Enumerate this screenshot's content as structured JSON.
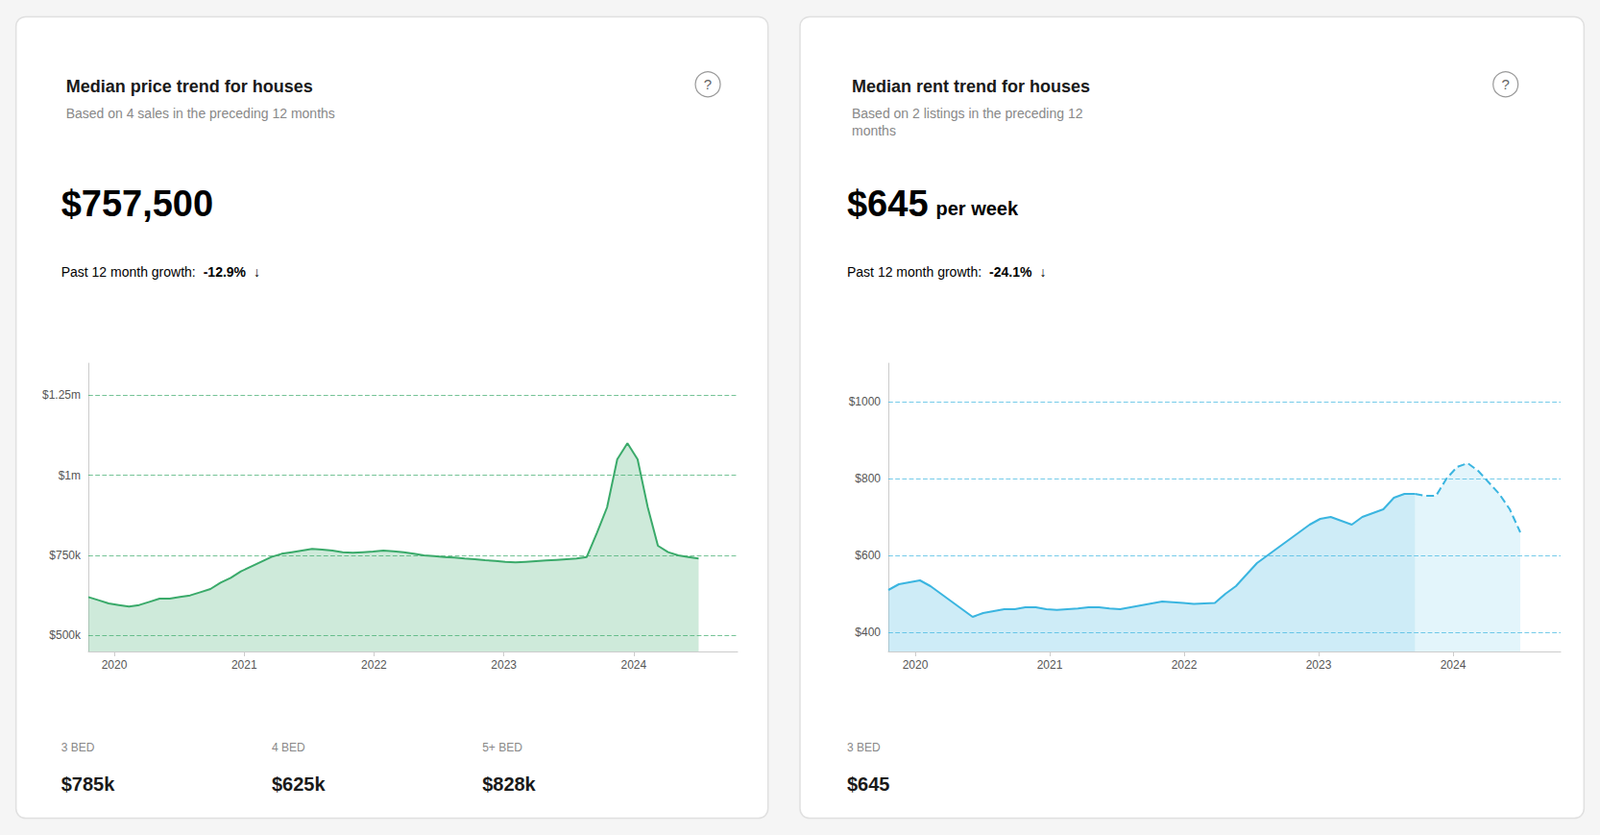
{
  "chart_data": [
    {
      "type": "area",
      "title": "Median price trend for houses",
      "subtitle": "Based on 4 sales in the preceding 12 months",
      "annotations": [
        [
          "?"
        ],
        [
          "$757,500"
        ],
        [
          "Past 12 month growth:",
          "-12.9%",
          "↓"
        ],
        [
          "3 BED",
          "4 BED",
          "5+ BED"
        ],
        [
          "$785k",
          "$625k",
          "$828k"
        ]
      ],
      "x": [
        2019.8,
        2019.878333,
        2019.956667,
        2020.035,
        2020.113333,
        2020.191667,
        2020.27,
        2020.348333,
        2020.426667,
        2020.505,
        2020.583333,
        2020.661667,
        2020.74,
        2020.818333,
        2020.896667,
        2020.975,
        2021.053333,
        2021.131667,
        2021.21,
        2021.288333,
        2021.366667,
        2021.445,
        2021.523333,
        2021.601667,
        2021.68,
        2021.758333,
        2021.836667,
        2021.915,
        2021.993333,
        2022.071667,
        2022.15,
        2022.228333,
        2022.306667,
        2022.385,
        2022.463333,
        2022.541667,
        2022.62,
        2022.698333,
        2022.776667,
        2022.855,
        2022.933333,
        2023.011667,
        2023.09,
        2023.168333,
        2023.246667,
        2023.325,
        2023.403333,
        2023.481667,
        2023.56,
        2023.638333,
        2023.716667,
        2023.795,
        2023.873333,
        2023.951667,
        2024.03,
        2024.108333,
        2024.186667,
        2024.265,
        2024.343333,
        2024.421667,
        2024.5
      ],
      "series": [
        {
          "color": "#3aaa6a",
          "line_style": "solid",
          "values": [
            620000,
            610000,
            600000,
            595000,
            590000,
            595000,
            605000,
            615000,
            615000,
            620000,
            625000,
            635000,
            645000,
            665000,
            680000,
            700000,
            715000,
            730000,
            745000,
            755000,
            760000,
            765000,
            770000,
            768000,
            765000,
            760000,
            758000,
            760000,
            762000,
            765000,
            763000,
            760000,
            755000,
            750000,
            748000,
            745000,
            743000,
            740000,
            738000,
            735000,
            733000,
            730000,
            728000,
            730000,
            732000,
            734000,
            736000,
            738000,
            740000,
            745000,
            820000,
            900000,
            1050000,
            1100000,
            1050000,
            900000,
            780000,
            760000,
            750000,
            745000,
            740000
          ]
        }
      ],
      "xlim": [
        2019.8,
        2024.8
      ],
      "xticks": [
        2020,
        2021,
        2022,
        2023,
        2024
      ],
      "ylim": [
        450000,
        1350000
      ],
      "yticks": [
        {
          "value": 500000,
          "label": "$500k"
        },
        {
          "value": 750000,
          "label": "$750k"
        },
        {
          "value": 1000000,
          "label": "$1m"
        },
        {
          "value": 1250000,
          "label": "$1.25m"
        }
      ],
      "grid": true
    },
    {
      "type": "area",
      "title": "Median rent trend for houses",
      "subtitle": "Based on 2 listings in the preceding 12\nmonths",
      "annotations": [
        [
          "?"
        ],
        [
          "$645",
          "per week"
        ],
        [
          "Past 12 month growth:",
          "-24.1%",
          "↓"
        ],
        [
          "3 BED"
        ],
        [
          "$645"
        ]
      ],
      "x": [
        2019.8,
        2019.878333,
        2019.956667,
        2020.035,
        2020.113333,
        2020.191667,
        2020.27,
        2020.348333,
        2020.426667,
        2020.505,
        2020.583333,
        2020.661667,
        2020.74,
        2020.818333,
        2020.896667,
        2020.975,
        2021.053333,
        2021.131667,
        2021.21,
        2021.288333,
        2021.366667,
        2021.445,
        2021.523333,
        2021.601667,
        2021.68,
        2021.758333,
        2021.836667,
        2021.915,
        2021.993333,
        2022.071667,
        2022.15,
        2022.228333,
        2022.306667,
        2022.385,
        2022.463333,
        2022.541667,
        2022.62,
        2022.698333,
        2022.776667,
        2022.855,
        2022.933333,
        2023.011667,
        2023.09,
        2023.168333,
        2023.246667,
        2023.325,
        2023.403333,
        2023.481667,
        2023.56,
        2023.638333,
        2023.716667,
        2023.795,
        2023.873333,
        2023.951667,
        2024.03,
        2024.108333,
        2024.186667,
        2024.265,
        2024.343333,
        2024.421667,
        2024.5
      ],
      "series": [
        {
          "color": "#3ab5e0",
          "line_style": "solid",
          "values": [
            510,
            525,
            530,
            535,
            520,
            500,
            480,
            460,
            440,
            450,
            455,
            460,
            460,
            465,
            465,
            460,
            458,
            460,
            462,
            465,
            465,
            462,
            460,
            465,
            470,
            475,
            480,
            478,
            476,
            474,
            475,
            476,
            500,
            520,
            550,
            580,
            600,
            620,
            640,
            660,
            680,
            695,
            700,
            690,
            680,
            700,
            710,
            720,
            750,
            760,
            760,
            null,
            null,
            null,
            null,
            null,
            null,
            null,
            null,
            null,
            null
          ]
        },
        {
          "color": "#3ab5e0",
          "line_style": "dashed",
          "values": [
            null,
            null,
            null,
            null,
            null,
            null,
            null,
            null,
            null,
            null,
            null,
            null,
            null,
            null,
            null,
            null,
            null,
            null,
            null,
            null,
            null,
            null,
            null,
            null,
            null,
            null,
            null,
            null,
            null,
            null,
            null,
            null,
            null,
            null,
            null,
            null,
            null,
            null,
            null,
            null,
            null,
            null,
            null,
            null,
            null,
            null,
            null,
            null,
            null,
            null,
            760,
            755,
            755,
            800,
            830,
            840,
            820,
            790,
            760,
            720,
            660
          ]
        }
      ],
      "xlim": [
        2019.8,
        2024.8
      ],
      "xticks": [
        2020,
        2021,
        2022,
        2023,
        2024
      ],
      "ylim": [
        350,
        1100
      ],
      "yticks": [
        {
          "value": 400,
          "label": "$400"
        },
        {
          "value": 600,
          "label": "$600"
        },
        {
          "value": 800,
          "label": "$800"
        },
        {
          "value": 1000,
          "label": "$1000"
        }
      ],
      "grid": true
    }
  ]
}
